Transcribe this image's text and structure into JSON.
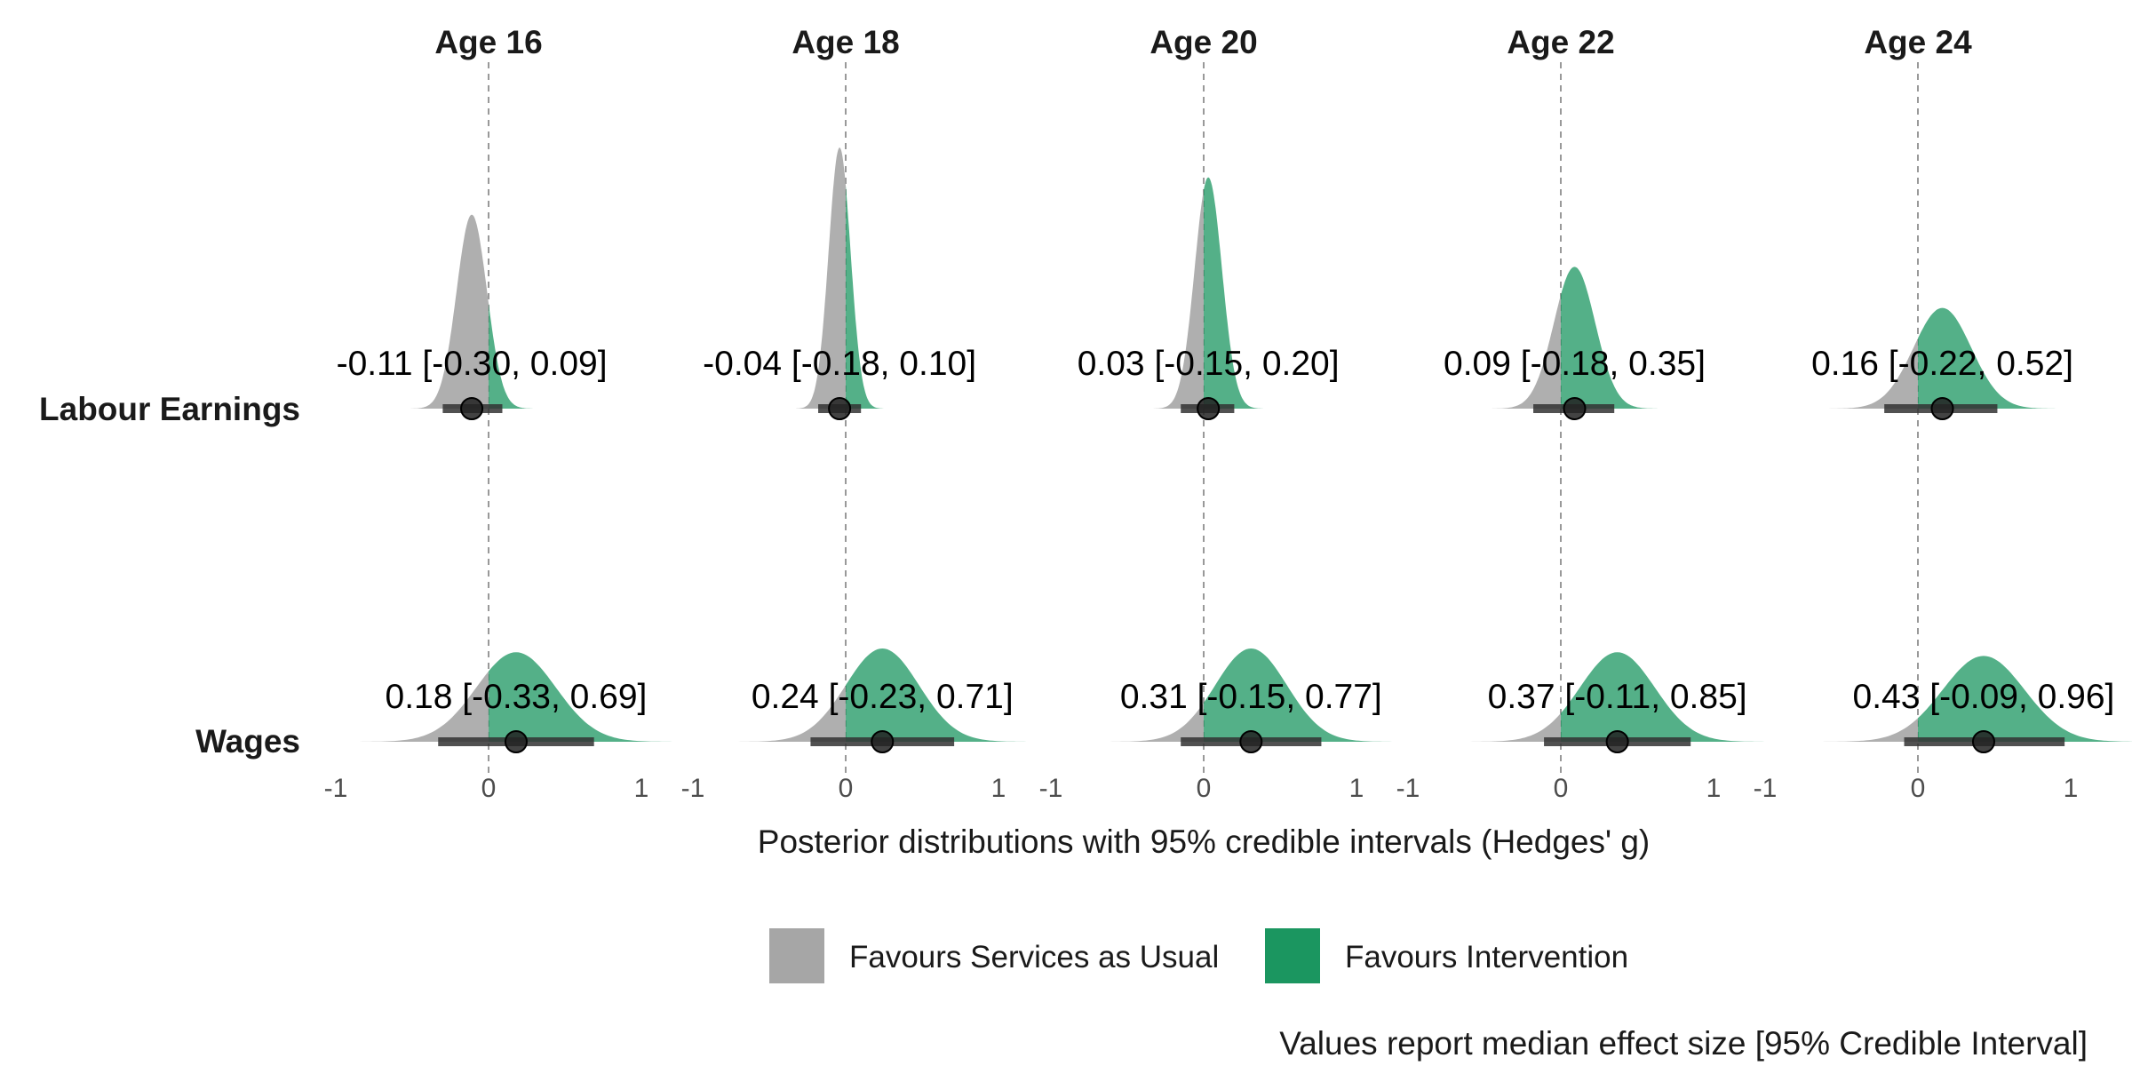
{
  "chart_data": {
    "type": "area",
    "chart_kind": "faceted posterior density (half-eye) plot",
    "facets": [
      "Age 16",
      "Age 18",
      "Age 20",
      "Age 22",
      "Age 24"
    ],
    "rows": [
      "Labour Earnings",
      "Wages"
    ],
    "x_ticks": [
      "-1",
      "0",
      "1"
    ],
    "xlim": [
      -1,
      1
    ],
    "reference_line": 0,
    "xlabel": "Posterior distributions with 95% credible intervals (Hedges' g)",
    "caption": "Values report median effect size [95% Credible Interval]",
    "legend": {
      "position": "bottom",
      "items": [
        {
          "label": "Favours Services as Usual",
          "color": "#a6a6a6"
        },
        {
          "label": "Favours Intervention",
          "color": "#1b9660"
        }
      ]
    },
    "estimates": [
      {
        "row": "Labour Earnings",
        "facet": "Age 16",
        "median": -0.11,
        "lower": -0.3,
        "upper": 0.09,
        "label": "-0.11 [-0.30, 0.09]",
        "peak": 0.52
      },
      {
        "row": "Labour Earnings",
        "facet": "Age 18",
        "median": -0.04,
        "lower": -0.18,
        "upper": 0.1,
        "label": "-0.04 [-0.18, 0.10]",
        "peak": 0.7
      },
      {
        "row": "Labour Earnings",
        "facet": "Age 20",
        "median": 0.03,
        "lower": -0.15,
        "upper": 0.2,
        "label": "0.03 [-0.15, 0.20]",
        "peak": 0.62
      },
      {
        "row": "Labour Earnings",
        "facet": "Age 22",
        "median": 0.09,
        "lower": -0.18,
        "upper": 0.35,
        "label": "0.09 [-0.18, 0.35]",
        "peak": 0.38
      },
      {
        "row": "Labour Earnings",
        "facet": "Age 24",
        "median": 0.16,
        "lower": -0.22,
        "upper": 0.52,
        "label": "0.16 [-0.22, 0.52]",
        "peak": 0.27
      },
      {
        "row": "Wages",
        "facet": "Age 16",
        "median": 0.18,
        "lower": -0.33,
        "upper": 0.69,
        "label": "0.18 [-0.33, 0.69]",
        "peak": 0.24
      },
      {
        "row": "Wages",
        "facet": "Age 18",
        "median": 0.24,
        "lower": -0.23,
        "upper": 0.71,
        "label": "0.24 [-0.23, 0.71]",
        "peak": 0.25
      },
      {
        "row": "Wages",
        "facet": "Age 20",
        "median": 0.31,
        "lower": -0.15,
        "upper": 0.77,
        "label": "0.31 [-0.15, 0.77]",
        "peak": 0.25
      },
      {
        "row": "Wages",
        "facet": "Age 22",
        "median": 0.37,
        "lower": -0.11,
        "upper": 0.85,
        "label": "0.37 [-0.11, 0.85]",
        "peak": 0.24
      },
      {
        "row": "Wages",
        "facet": "Age 24",
        "median": 0.43,
        "lower": -0.09,
        "upper": 0.96,
        "label": "0.43 [-0.09, 0.96]",
        "peak": 0.23
      }
    ]
  }
}
